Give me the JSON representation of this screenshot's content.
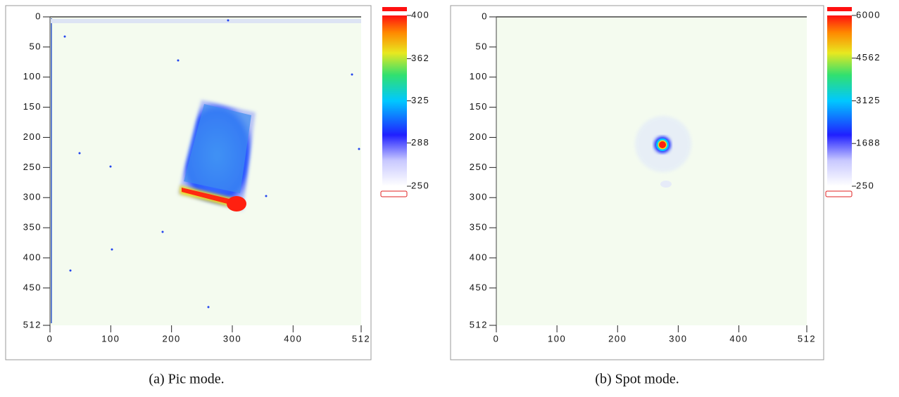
{
  "chart_data": [
    {
      "type": "image",
      "caption": "(a) Pic mode.",
      "xlim": [
        0,
        512
      ],
      "ylim": [
        512,
        0
      ],
      "xticks": [
        0,
        100,
        200,
        300,
        400,
        512
      ],
      "yticks": [
        0,
        50,
        100,
        150,
        200,
        250,
        300,
        350,
        400,
        450,
        512
      ],
      "colorbar_lim": [
        250,
        400
      ],
      "colorbar_ticks": [
        250,
        288,
        325,
        362,
        400
      ]
    },
    {
      "type": "image",
      "caption": "(b) Spot mode.",
      "xlim": [
        0,
        512
      ],
      "ylim": [
        512,
        0
      ],
      "xticks": [
        0,
        100,
        200,
        300,
        400,
        512
      ],
      "yticks": [
        0,
        50,
        100,
        150,
        200,
        250,
        300,
        350,
        400,
        450,
        512
      ],
      "colorbar_lim": [
        250,
        6000
      ],
      "colorbar_ticks": [
        250,
        1688,
        3125,
        4562,
        6000
      ]
    }
  ]
}
